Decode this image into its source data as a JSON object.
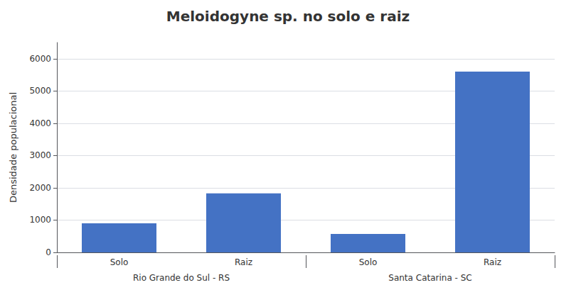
{
  "chart_data": {
    "type": "bar",
    "title": "Meloidogyne sp. no solo e raiz",
    "ylabel": "Densidade populacional",
    "categories": [
      "Solo",
      "Raiz",
      "Solo",
      "Raiz"
    ],
    "groups": [
      "Rio Grande do Sul - RS",
      "Santa Catarina - SC"
    ],
    "values": [
      900,
      1830,
      570,
      5600
    ],
    "color": "#4472C4",
    "ylim": [
      0,
      6500
    ],
    "yticks": [
      0,
      1000,
      2000,
      3000,
      4000,
      5000,
      6000
    ],
    "grid": true
  }
}
